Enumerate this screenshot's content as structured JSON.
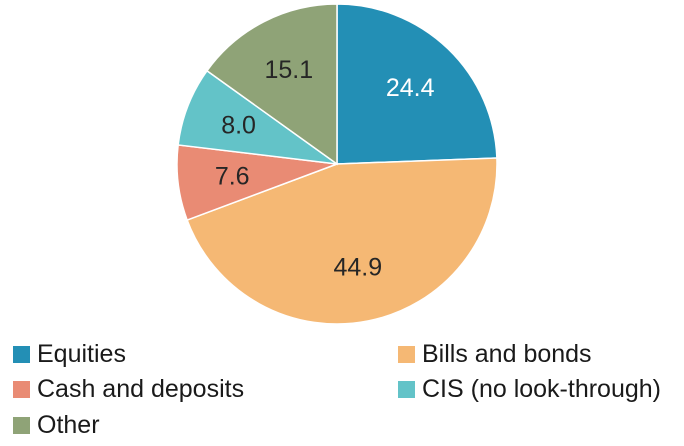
{
  "chart_data": {
    "type": "pie",
    "title": "",
    "start": "12 o'clock",
    "direction": "clockwise",
    "slices": [
      {
        "name": "Equities",
        "value": 24.4,
        "label": "24.4",
        "color": "#238FB5",
        "label_color": "#ffffff"
      },
      {
        "name": "Bills and bonds",
        "value": 44.9,
        "label": "44.9",
        "color": "#F5B874",
        "label_color": "#262626"
      },
      {
        "name": "Cash and deposits",
        "value": 7.6,
        "label": "7.6",
        "color": "#E98B74",
        "label_color": "#262626"
      },
      {
        "name": "CIS (no look-through)",
        "value": 8.0,
        "label": "8.0",
        "color": "#63C3C8",
        "label_color": "#262626"
      },
      {
        "name": "Other",
        "value": 15.1,
        "label": "15.1",
        "color": "#8FA377",
        "label_color": "#262626"
      }
    ],
    "legend": {
      "position": "bottom",
      "columns": 2,
      "entries": [
        "Equities",
        "Bills and bonds",
        "Cash and deposits",
        "CIS (no look-through)",
        "Other"
      ]
    }
  }
}
